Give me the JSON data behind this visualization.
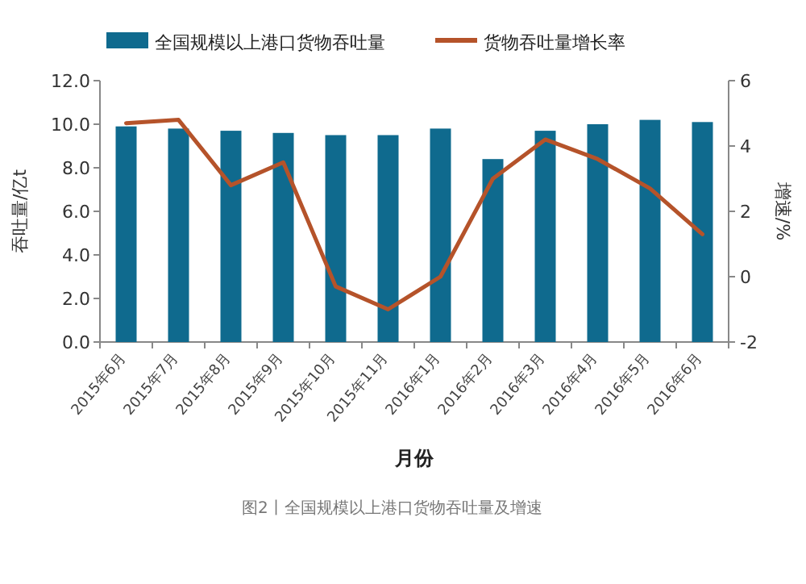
{
  "chart_data": {
    "type": "bar",
    "categories": [
      "2015年6月",
      "2015年7月",
      "2015年8月",
      "2015年9月",
      "2015年10月",
      "2015年11月",
      "2016年1月",
      "2016年2月",
      "2016年3月",
      "2016年4月",
      "2016年5月",
      "2016年6月"
    ],
    "series": [
      {
        "name": "全国规模以上港口货物吞吐量",
        "color": "#0f6a8e",
        "values": [
          9.9,
          9.8,
          9.7,
          9.6,
          9.5,
          9.5,
          9.8,
          8.4,
          9.7,
          10.0,
          10.2,
          10.1
        ]
      },
      {
        "name": "货物吞吐量增长率",
        "type": "line",
        "axis": "y2",
        "color": "#b5532a",
        "values": [
          4.7,
          4.8,
          2.8,
          3.5,
          -0.3,
          -1.0,
          0.0,
          3.0,
          4.2,
          3.6,
          2.7,
          1.3
        ]
      }
    ],
    "xlabel": "月份",
    "ylabel": "吞吐量/亿t",
    "y2label": "增速/%",
    "ylim": [
      0,
      12
    ],
    "yticks": [
      {
        "value": 0,
        "label": "0.0"
      },
      {
        "value": 2,
        "label": "2.0"
      },
      {
        "value": 4,
        "label": "4.0"
      },
      {
        "value": 6,
        "label": "6.0"
      },
      {
        "value": 8,
        "label": "8.0"
      },
      {
        "value": 10,
        "label": "10.0"
      },
      {
        "value": 12,
        "label": "12.0"
      }
    ],
    "y2lim": [
      -2,
      6
    ],
    "y2ticks": [
      {
        "value": -2,
        "label": "-2"
      },
      0,
      2,
      4,
      6
    ],
    "legend": "top",
    "annotations": [
      "图2丨全国规模以上港口货物吞吐量及增速"
    ]
  }
}
